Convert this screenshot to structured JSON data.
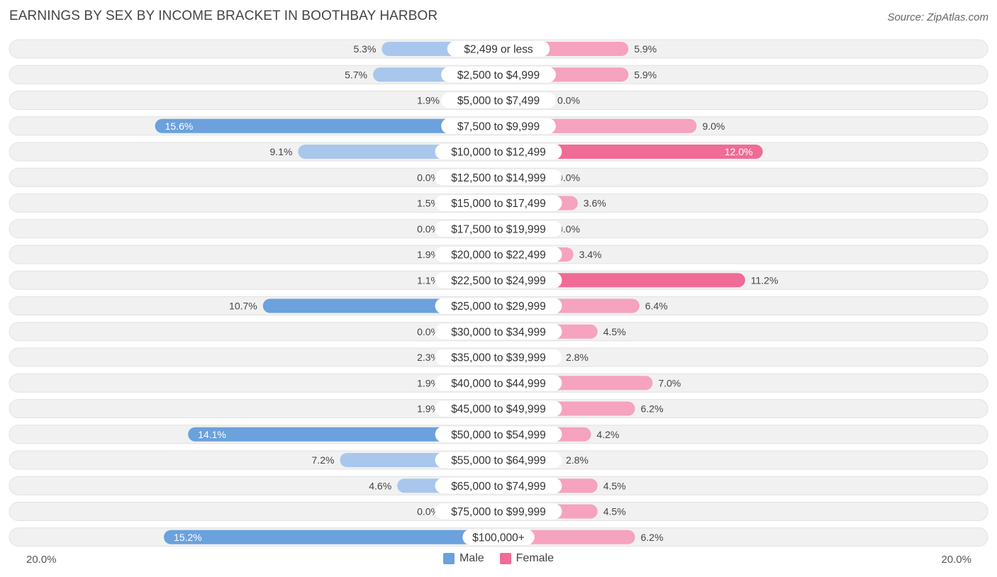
{
  "title": "EARNINGS BY SEX BY INCOME BRACKET IN BOOTHBAY HARBOR",
  "source": "Source: ZipAtlas.com",
  "colors": {
    "male_light": "#a9c7ec",
    "male_dark": "#6ba1dc",
    "female_light": "#f5a3bf",
    "female_dark": "#f06b95",
    "row_bg": "#f1f1f1"
  },
  "legend": {
    "male": "Male",
    "female": "Female"
  },
  "axis": {
    "left_label": "20.0%",
    "right_label": "20.0%"
  },
  "chart_data": {
    "type": "bar",
    "orientation": "horizontal-diverging",
    "title": "EARNINGS BY SEX BY INCOME BRACKET IN BOOTHBAY HARBOR",
    "xlim": [
      -20,
      20
    ],
    "categories": [
      "$2,499 or less",
      "$2,500 to $4,999",
      "$5,000 to $7,499",
      "$7,500 to $9,999",
      "$10,000 to $12,499",
      "$12,500 to $14,999",
      "$15,000 to $17,499",
      "$17,500 to $19,999",
      "$20,000 to $22,499",
      "$22,500 to $24,999",
      "$25,000 to $29,999",
      "$30,000 to $34,999",
      "$35,000 to $39,999",
      "$40,000 to $44,999",
      "$45,000 to $49,999",
      "$50,000 to $54,999",
      "$55,000 to $64,999",
      "$65,000 to $74,999",
      "$75,000 to $99,999",
      "$100,000+"
    ],
    "series": [
      {
        "name": "Male",
        "values": [
          5.3,
          5.7,
          1.9,
          15.6,
          9.1,
          0.0,
          1.5,
          0.0,
          1.9,
          1.1,
          10.7,
          0.0,
          2.3,
          1.9,
          1.9,
          14.1,
          7.2,
          4.6,
          0.0,
          15.2
        ],
        "labels": [
          "5.3%",
          "5.7%",
          "1.9%",
          "15.6%",
          "9.1%",
          "0.0%",
          "1.5%",
          "0.0%",
          "1.9%",
          "1.1%",
          "10.7%",
          "0.0%",
          "2.3%",
          "1.9%",
          "1.9%",
          "14.1%",
          "7.2%",
          "4.6%",
          "0.0%",
          "15.2%"
        ]
      },
      {
        "name": "Female",
        "values": [
          5.9,
          5.9,
          0.0,
          9.0,
          12.0,
          0.0,
          3.6,
          0.0,
          3.4,
          11.2,
          6.4,
          4.5,
          2.8,
          7.0,
          6.2,
          4.2,
          2.8,
          4.5,
          4.5,
          6.2
        ],
        "labels": [
          "5.9%",
          "5.9%",
          "0.0%",
          "9.0%",
          "12.0%",
          "0.0%",
          "3.6%",
          "0.0%",
          "3.4%",
          "11.2%",
          "6.4%",
          "4.5%",
          "2.8%",
          "7.0%",
          "6.2%",
          "4.2%",
          "2.8%",
          "4.5%",
          "4.5%",
          "6.2%"
        ]
      }
    ]
  }
}
